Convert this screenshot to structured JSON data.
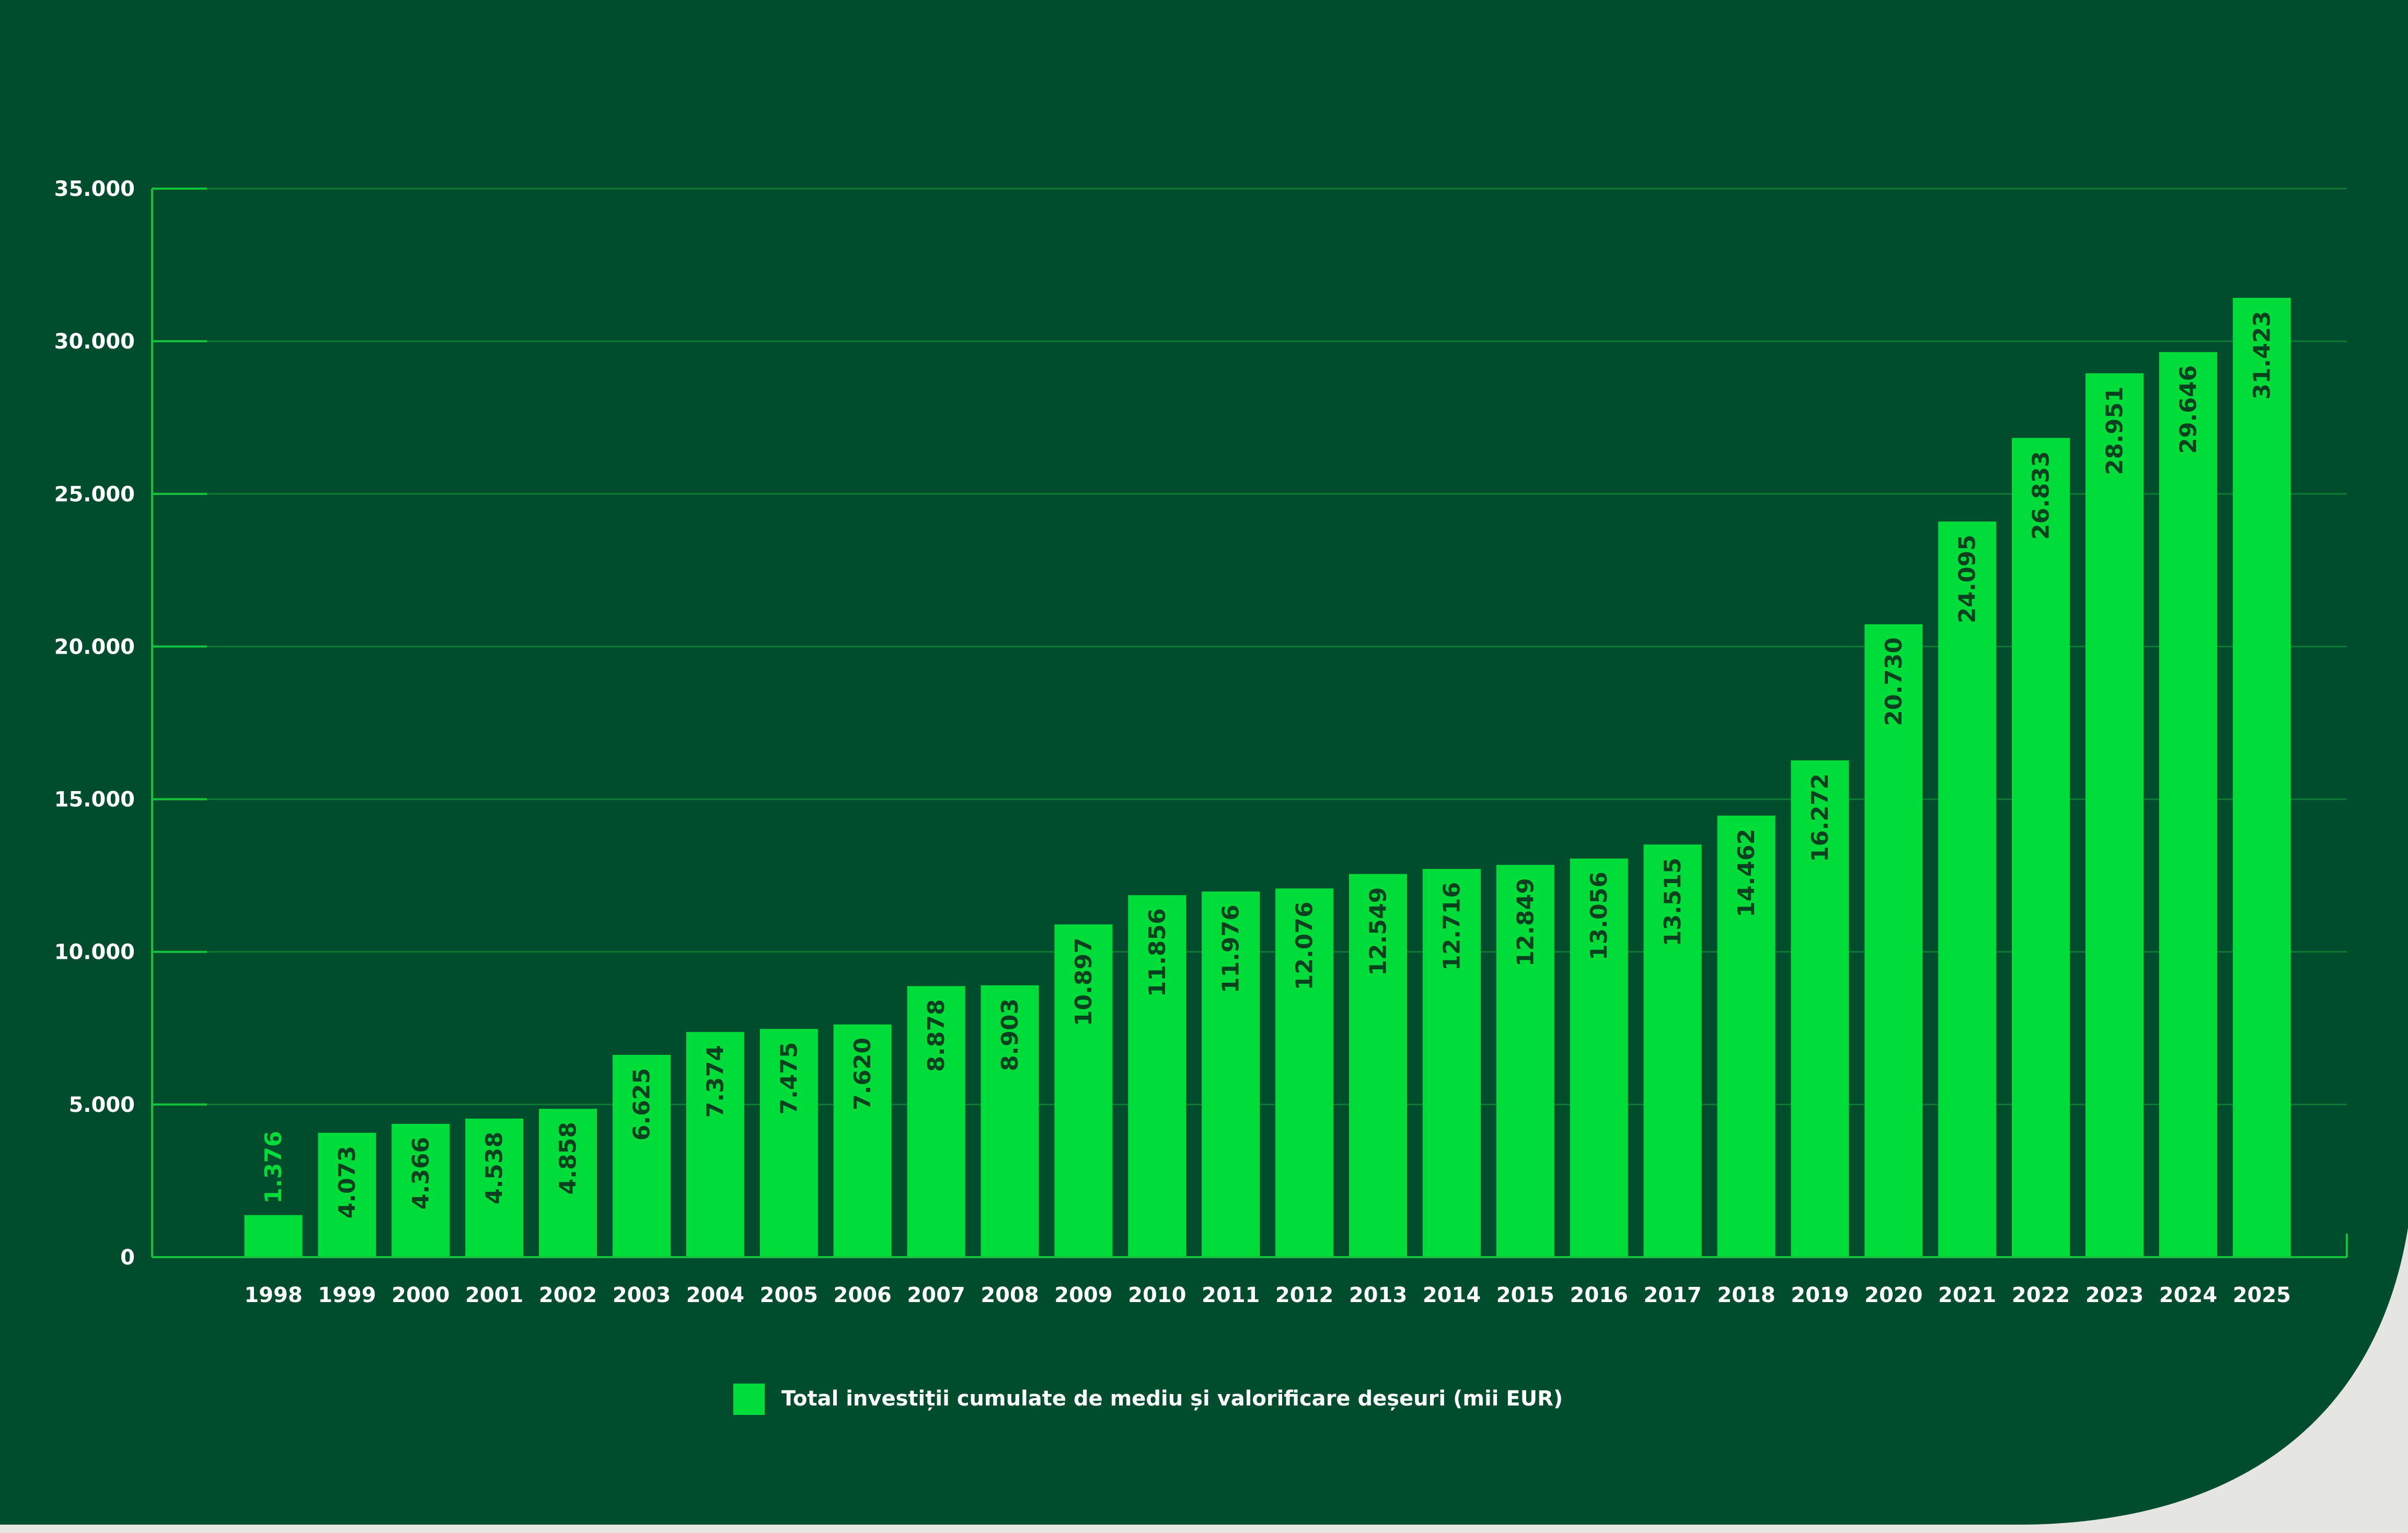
{
  "colors": {
    "background": "#004d2e",
    "bar": "#00dd3a",
    "axis": "#13c43c",
    "grid": "#0e7a33",
    "tick_text": "#ffffff",
    "bar_label": "#07411f",
    "first_bar_label": "#00dd3a",
    "corner": "#e5e5e1"
  },
  "chart_data": {
    "type": "bar",
    "title": "",
    "xlabel": "",
    "ylabel": "",
    "ylim": [
      0,
      35000
    ],
    "yticks": [
      0,
      5000,
      10000,
      15000,
      20000,
      25000,
      30000,
      35000
    ],
    "ytick_labels": [
      "0",
      "5.000",
      "10.000",
      "15.000",
      "20.000",
      "25.000",
      "30.000",
      "35.000"
    ],
    "grid": true,
    "legend_position": "bottom-center",
    "categories": [
      "1998",
      "1999",
      "2000",
      "2001",
      "2002",
      "2003",
      "2004",
      "2005",
      "2006",
      "2007",
      "2008",
      "2009",
      "2010",
      "2011",
      "2012",
      "2013",
      "2014",
      "2015",
      "2016",
      "2017",
      "2018",
      "2019",
      "2020",
      "2021",
      "2022",
      "2023",
      "2024",
      "2025"
    ],
    "series": [
      {
        "name": "Total investiții cumulate de mediu și valorificare deșeuri (mii EUR)",
        "values": [
          1376,
          4073,
          4366,
          4538,
          4858,
          6625,
          7374,
          7475,
          7620,
          8878,
          8903,
          10897,
          11856,
          11976,
          12076,
          12549,
          12716,
          12849,
          13056,
          13515,
          14462,
          16272,
          20730,
          24095,
          26833,
          28951,
          29646,
          31423
        ],
        "labels": [
          "1.376",
          "4.073",
          "4.366",
          "4.538",
          "4.858",
          "6.625",
          "7.374",
          "7.475",
          "7.620",
          "8.878",
          "8.903",
          "10.897",
          "11.856",
          "11.976",
          "12.076",
          "12.549",
          "12.716",
          "12.849",
          "13.056",
          "13.515",
          "14.462",
          "16.272",
          "20.730",
          "24.095",
          "26.833",
          "28.951",
          "29.646",
          "31.423"
        ]
      }
    ]
  }
}
